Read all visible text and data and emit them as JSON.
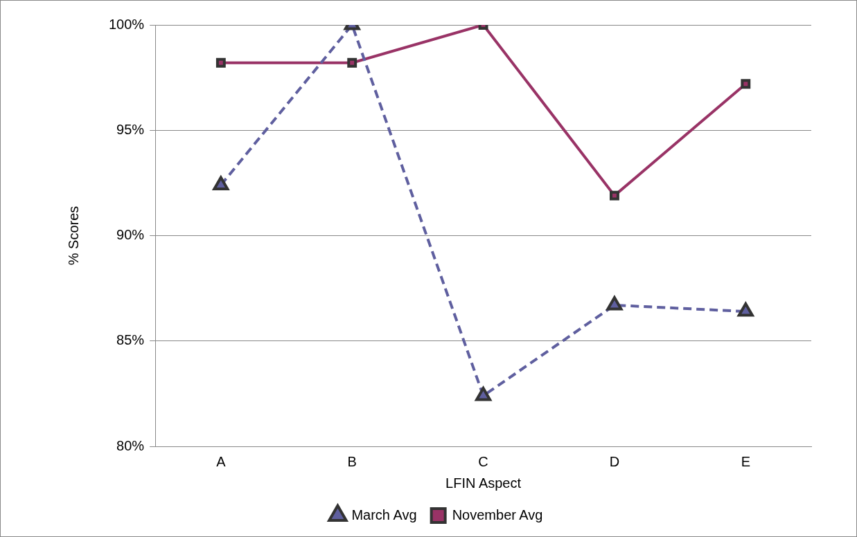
{
  "chart_data": {
    "type": "line",
    "xlabel": "LFIN Aspect",
    "ylabel": "% Scores",
    "categories": [
      "A",
      "B",
      "C",
      "D",
      "E"
    ],
    "series": [
      {
        "name": "March Avg",
        "color": "#5f5f9f",
        "values": [
          92.4,
          100,
          82.4,
          86.7,
          86.4
        ],
        "marker": "triangle",
        "line_style": "dashed"
      },
      {
        "name": "November Avg",
        "color": "#993366",
        "values": [
          98.2,
          98.2,
          100,
          91.9,
          97.2
        ],
        "marker": "square",
        "line_style": "solid"
      }
    ],
    "ylim": [
      80,
      100
    ],
    "yticks": [
      {
        "value": 80,
        "label": "80%"
      },
      {
        "value": 85,
        "label": "85%"
      },
      {
        "value": 90,
        "label": "90%"
      },
      {
        "value": 95,
        "label": "95%"
      },
      {
        "value": 100,
        "label": "100%"
      }
    ],
    "grid": "y",
    "legend": "bottom"
  }
}
